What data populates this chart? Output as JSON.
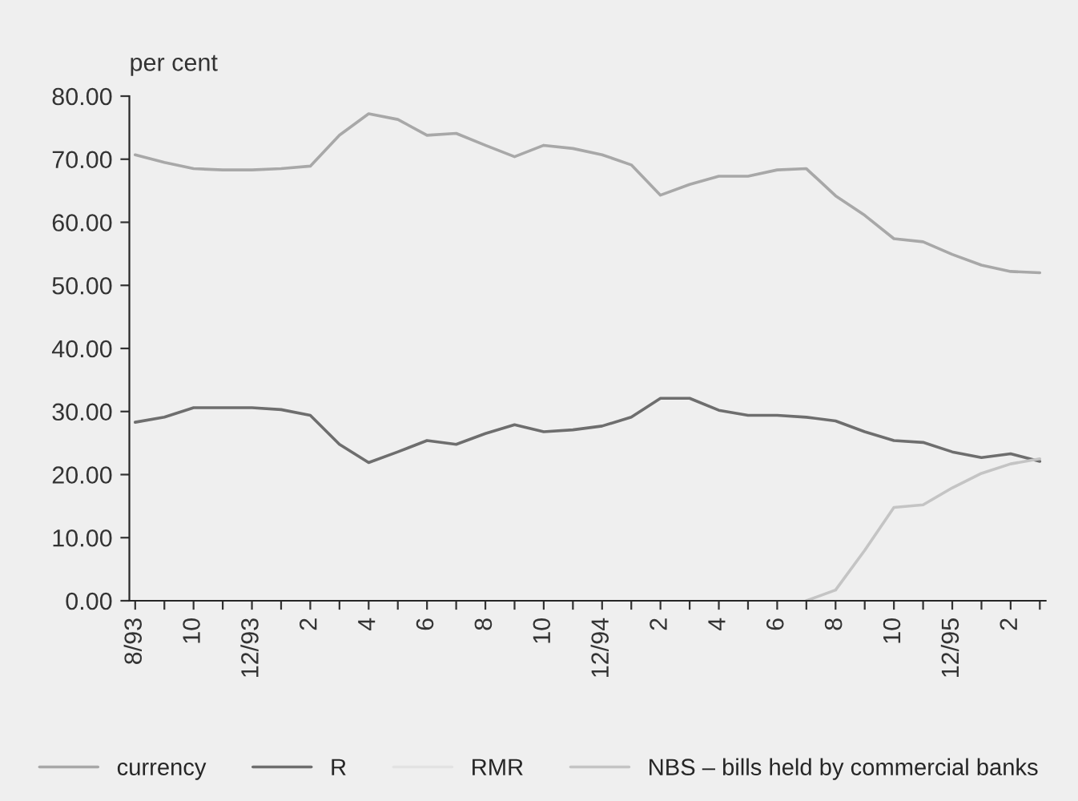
{
  "chart_data": {
    "type": "line",
    "ylabel": "per cent",
    "categories": [
      "8/93",
      null,
      "10",
      null,
      "12/93",
      null,
      "2",
      null,
      "4",
      null,
      "6",
      null,
      "8",
      null,
      "10",
      null,
      "12/94",
      null,
      "2",
      null,
      "4",
      null,
      "6",
      null,
      "8",
      null,
      "10",
      null,
      "12/95",
      null,
      "2",
      null
    ],
    "series": [
      {
        "name": "currency",
        "color": "#a8a8a8",
        "values": [
          70.7,
          69.5,
          68.5,
          68.3,
          68.3,
          68.5,
          68.9,
          73.8,
          77.2,
          76.3,
          73.8,
          74.1,
          72.2,
          70.4,
          72.2,
          71.7,
          70.7,
          69.1,
          64.3,
          66,
          67.3,
          67.3,
          68.3,
          68.5,
          64.2,
          61.1,
          57.4,
          56.9,
          54.9,
          53.2,
          52.2,
          52
        ]
      },
      {
        "name": "R",
        "color": "#6e6e6e",
        "values": [
          28.3,
          29.1,
          30.6,
          30.6,
          30.6,
          30.3,
          29.4,
          24.8,
          21.9,
          23.6,
          25.4,
          24.8,
          26.5,
          27.9,
          26.8,
          27.1,
          27.7,
          29.1,
          32.1,
          32.1,
          30.2,
          29.4,
          29.4,
          29.1,
          28.5,
          26.8,
          25.4,
          25.1,
          23.6,
          22.7,
          23.3,
          22.1
        ]
      },
      {
        "name": "RMR",
        "color": "#e2e2e2",
        "values": [
          null,
          null,
          null,
          null,
          null,
          null,
          null,
          null,
          null,
          null,
          null,
          null,
          null,
          null,
          null,
          null,
          null,
          null,
          null,
          null,
          null,
          null,
          null,
          null,
          null,
          null,
          null,
          null,
          null,
          null,
          null,
          null
        ]
      },
      {
        "name": "NBS – bills held by commercial banks",
        "color": "#c4c4c4",
        "values": [
          null,
          null,
          null,
          null,
          null,
          null,
          null,
          null,
          null,
          null,
          null,
          null,
          null,
          null,
          null,
          null,
          null,
          null,
          null,
          null,
          null,
          null,
          null,
          0,
          1.7,
          8,
          14.8,
          15.2,
          17.9,
          20.2,
          21.7,
          22.5
        ]
      }
    ],
    "ylim": [
      0,
      80
    ],
    "yticks": [
      {
        "value": 0,
        "label": "0.00"
      },
      {
        "value": 10,
        "label": "10.00"
      },
      {
        "value": 20,
        "label": "20.00"
      },
      {
        "value": 30,
        "label": "30.00"
      },
      {
        "value": 40,
        "label": "40.00"
      },
      {
        "value": 50,
        "label": "50.00"
      },
      {
        "value": 60,
        "label": "60.00"
      },
      {
        "value": 70,
        "label": "70.00"
      },
      {
        "value": 80,
        "label": "80.00"
      }
    ],
    "legend": "bottom",
    "grid": false,
    "marker": "none",
    "line_style": "solid"
  }
}
